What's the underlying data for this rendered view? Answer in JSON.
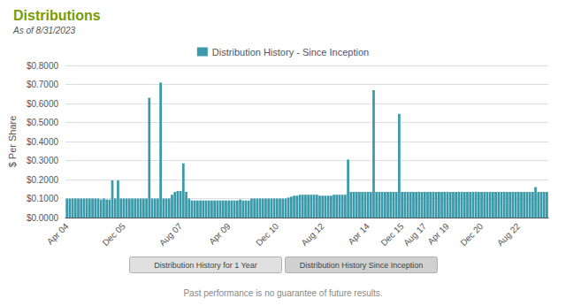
{
  "chart_data": {
    "type": "bar",
    "title": "Distributions",
    "subtitle": "As of 8/31/2023",
    "ylabel": "$ Per Share",
    "footer": "Past performance is no guarantee of future results.",
    "buttons": [
      "Distribution History for 1 Year",
      "Distribution History Since Inception"
    ],
    "series": [
      {
        "name": "Distribution History - Since Inception",
        "color": "#3a9aaa",
        "values": [
          0.1,
          0.1,
          0.1,
          0.1,
          0.1,
          0.1,
          0.1,
          0.1,
          0.1,
          0.1,
          0.1,
          0.1,
          0.095,
          0.1,
          0.095,
          0.095,
          0.195,
          0.1,
          0.195,
          0.1,
          0.1,
          0.1,
          0.1,
          0.1,
          0.1,
          0.1,
          0.1,
          0.1,
          0.1,
          0.63,
          0.1,
          0.1,
          0.1,
          0.71,
          0.1,
          0.1,
          0.1,
          0.12,
          0.135,
          0.14,
          0.14,
          0.285,
          0.135,
          0.1,
          0.09,
          0.09,
          0.09,
          0.09,
          0.09,
          0.09,
          0.09,
          0.09,
          0.09,
          0.09,
          0.09,
          0.09,
          0.09,
          0.09,
          0.09,
          0.09,
          0.09,
          0.095,
          0.09,
          0.09,
          0.09,
          0.1,
          0.1,
          0.1,
          0.1,
          0.1,
          0.1,
          0.1,
          0.1,
          0.1,
          0.1,
          0.1,
          0.1,
          0.1,
          0.105,
          0.11,
          0.115,
          0.115,
          0.12,
          0.12,
          0.12,
          0.12,
          0.12,
          0.12,
          0.12,
          0.115,
          0.115,
          0.115,
          0.115,
          0.115,
          0.12,
          0.12,
          0.12,
          0.12,
          0.12,
          0.305,
          0.135,
          0.135,
          0.135,
          0.135,
          0.135,
          0.135,
          0.135,
          0.135,
          0.67,
          0.135,
          0.135,
          0.135,
          0.135,
          0.135,
          0.135,
          0.135,
          0.135,
          0.545,
          0.135,
          0.135,
          0.135,
          0.135,
          0.135,
          0.135,
          0.135,
          0.135,
          0.135,
          0.135,
          0.135,
          0.135,
          0.135,
          0.135,
          0.135,
          0.135,
          0.135,
          0.135,
          0.135,
          0.135,
          0.135,
          0.135,
          0.135,
          0.135,
          0.135,
          0.135,
          0.135,
          0.135,
          0.135,
          0.135,
          0.135,
          0.135,
          0.135,
          0.135,
          0.135,
          0.135,
          0.135,
          0.135,
          0.135,
          0.135,
          0.135,
          0.135,
          0.135,
          0.135,
          0.135,
          0.135,
          0.135,
          0.16,
          0.135,
          0.135,
          0.135,
          0.135
        ]
      }
    ],
    "categories": [
      "Apr 04",
      null,
      null,
      null,
      null,
      null,
      null,
      null,
      null,
      null,
      null,
      null,
      null,
      null,
      null,
      null,
      null,
      null,
      null,
      null,
      "Dec 05",
      null,
      null,
      null,
      null,
      null,
      null,
      null,
      null,
      null,
      null,
      null,
      null,
      null,
      null,
      null,
      null,
      null,
      null,
      null,
      "Aug 07",
      null,
      null,
      null,
      null,
      null,
      null,
      null,
      null,
      null,
      null,
      null,
      null,
      null,
      null,
      null,
      null,
      "Apr 09",
      null,
      null,
      null,
      null,
      null,
      null,
      null,
      null,
      null,
      null,
      null,
      null,
      null,
      null,
      null,
      null,
      "Dec 10",
      null,
      null,
      null,
      null,
      null,
      null,
      null,
      null,
      null,
      null,
      null,
      null,
      null,
      null,
      null,
      "Aug 12",
      null,
      null,
      null,
      null,
      null,
      null,
      null,
      null,
      null,
      null,
      null,
      null,
      null,
      null,
      null,
      "Apr 14",
      null,
      null,
      null,
      null,
      null,
      null,
      null,
      null,
      null,
      null,
      null,
      "Dec 15",
      null,
      null,
      null,
      null,
      null,
      null,
      null,
      "Aug 17",
      null,
      null,
      null,
      null,
      null,
      null,
      null,
      "Apr 19",
      null,
      null,
      null,
      null,
      null,
      null,
      null,
      null,
      null,
      null,
      null,
      "Dec 20",
      null,
      null,
      null,
      null,
      null,
      null,
      null,
      null,
      null,
      null,
      null,
      null,
      "Aug 22",
      null,
      null,
      null,
      null,
      null,
      null,
      null,
      null,
      null,
      null
    ],
    "ylim": [
      0,
      0.8
    ],
    "yticks": [
      {
        "value": 0.0,
        "label": "$0.0000"
      },
      {
        "value": 0.1,
        "label": "$0.1000"
      },
      {
        "value": 0.2,
        "label": "$0.2000"
      },
      {
        "value": 0.3,
        "label": "$0.3000"
      },
      {
        "value": 0.4,
        "label": "$0.4000"
      },
      {
        "value": 0.5,
        "label": "$0.5000"
      },
      {
        "value": 0.6,
        "label": "$0.6000"
      },
      {
        "value": 0.7,
        "label": "$0.7000"
      },
      {
        "value": 0.8,
        "label": "$0.8000"
      }
    ],
    "grid": true,
    "legend": "top",
    "title_color": "#7a9a00"
  }
}
